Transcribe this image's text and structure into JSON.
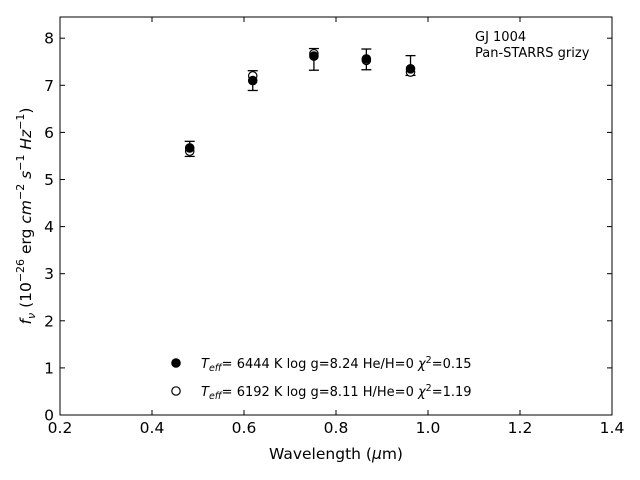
{
  "chart_data": {
    "type": "scatter",
    "xlabel_prefix": "Wavelength (",
    "xlabel_mu": "μ",
    "xlabel_suffix": "m)",
    "ylabel_parts": {
      "f": "f",
      "nu": "ν",
      "open": " (10",
      "exp26": "−26",
      "erg": " erg ",
      "cm": "cm",
      "exp2": "−2",
      "s": " s",
      "exp1a": "−1",
      "hz": " Hz",
      "exp1b": "−1",
      "close": ")"
    },
    "xlim": [
      0.2,
      1.4
    ],
    "ylim": [
      0,
      8.45
    ],
    "xticks": [
      "0.2",
      "0.4",
      "0.6",
      "0.8",
      "1.0",
      "1.2",
      "1.4"
    ],
    "yticks": [
      "0",
      "1",
      "2",
      "3",
      "4",
      "5",
      "6",
      "7",
      "8"
    ],
    "annotation": [
      "GJ 1004",
      "Pan-STARRS grizy"
    ],
    "observed": {
      "x": [
        0.482,
        0.619,
        0.752,
        0.866,
        0.962
      ],
      "y": [
        5.65,
        7.1,
        7.55,
        7.55,
        7.42
      ],
      "yerr": [
        0.16,
        0.21,
        0.23,
        0.22,
        0.21
      ]
    },
    "series": [
      {
        "marker": "filled",
        "x": [
          0.482,
          0.619,
          0.752,
          0.866,
          0.962
        ],
        "y": [
          5.67,
          7.1,
          7.62,
          7.56,
          7.35
        ],
        "teff": "6444 K",
        "logg": "log g=8.24",
        "comp": "He/H=0",
        "chi2": "=0.15"
      },
      {
        "marker": "open",
        "x": [
          0.482,
          0.619,
          0.752,
          0.866,
          0.962
        ],
        "y": [
          5.6,
          7.2,
          7.67,
          7.53,
          7.28
        ],
        "teff": "6192 K",
        "logg": "log g=8.11",
        "comp": "H/He=0",
        "chi2": "=1.19"
      }
    ],
    "legend_labels": {
      "T": "T",
      "eff": "eff",
      "eq": "=",
      "chi": "χ",
      "sq": "2"
    },
    "colors": {
      "axes": "#000000",
      "marker": "#000000",
      "background": "#ffffff"
    }
  }
}
